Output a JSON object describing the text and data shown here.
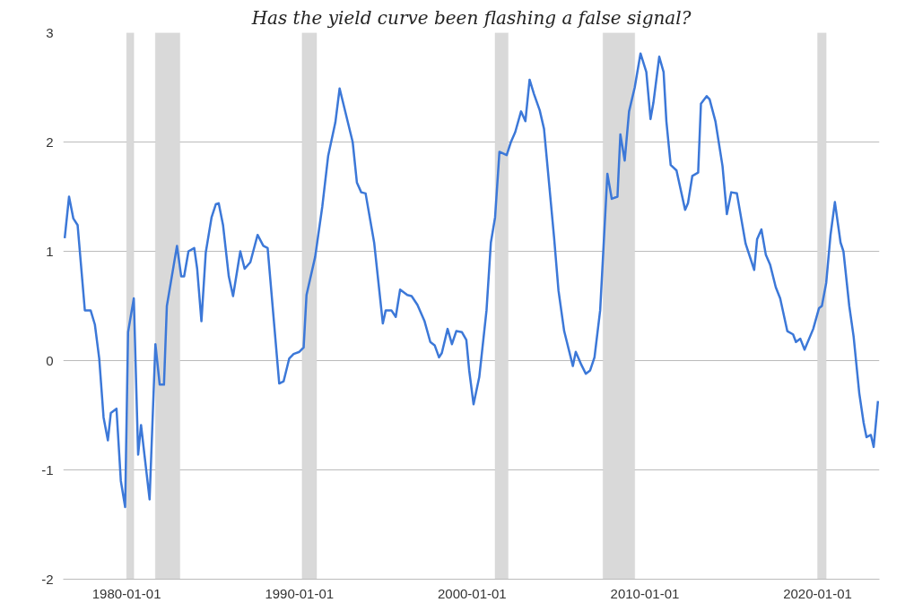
{
  "chart_data": {
    "type": "line",
    "title": "Has the yield curve been flashing a false signal?",
    "x": [
      "1976-06",
      "1976-09",
      "1976-12",
      "1977-03",
      "1977-08",
      "1977-12",
      "1978-03",
      "1978-06",
      "1978-09",
      "1978-12",
      "1979-02",
      "1979-06",
      "1979-09",
      "1979-12",
      "1980-02",
      "1980-06",
      "1980-09",
      "1980-11",
      "1981-05",
      "1981-09",
      "1981-12",
      "1982-03",
      "1982-05",
      "1982-12",
      "1983-03",
      "1983-05",
      "1983-08",
      "1983-12",
      "1984-02",
      "1984-05",
      "1984-08",
      "1984-12",
      "1985-03",
      "1985-05",
      "1985-08",
      "1985-12",
      "1986-03",
      "1986-08",
      "1986-11",
      "1987-03",
      "1987-08",
      "1987-12",
      "1988-03",
      "1988-11",
      "1989-02",
      "1989-06",
      "1989-09",
      "1990-01",
      "1990-04",
      "1990-06",
      "1990-12",
      "1991-05",
      "1991-09",
      "1992-02",
      "1992-05",
      "1993-02",
      "1993-05",
      "1993-08",
      "1993-11",
      "1994-05",
      "1994-11",
      "1995-01",
      "1995-05",
      "1995-08",
      "1995-11",
      "1996-04",
      "1996-07",
      "1996-11",
      "1997-04",
      "1997-08",
      "1997-11",
      "1998-02",
      "1998-04",
      "1998-08",
      "1998-11",
      "1999-02",
      "1999-06",
      "1999-09",
      "1999-11",
      "2000-02",
      "2000-06",
      "2000-11",
      "2001-02",
      "2001-05",
      "2001-08",
      "2002-01",
      "2002-04",
      "2002-07",
      "2002-11",
      "2003-02",
      "2003-05",
      "2003-08",
      "2003-12",
      "2004-03",
      "2004-10",
      "2005-01",
      "2005-05",
      "2005-11",
      "2006-01",
      "2006-05",
      "2006-08",
      "2006-11",
      "2007-02",
      "2007-06",
      "2007-11",
      "2008-02",
      "2008-06",
      "2008-08",
      "2008-11",
      "2009-02",
      "2009-06",
      "2009-10",
      "2010-02",
      "2010-05",
      "2010-07",
      "2010-11",
      "2011-02",
      "2011-04",
      "2011-07",
      "2011-11",
      "2012-05",
      "2012-07",
      "2012-10",
      "2013-02",
      "2013-04",
      "2013-08",
      "2013-10",
      "2014-02",
      "2014-07",
      "2014-10",
      "2015-01",
      "2015-05",
      "2015-11",
      "2016-05",
      "2016-07",
      "2016-10",
      "2017-01",
      "2017-04",
      "2017-08",
      "2017-11",
      "2018-04",
      "2018-08",
      "2018-10",
      "2019-01",
      "2019-04",
      "2019-10",
      "2020-02",
      "2020-04",
      "2020-07",
      "2020-10",
      "2021-01",
      "2021-05",
      "2021-07",
      "2021-11",
      "2022-02",
      "2022-06",
      "2022-09",
      "2022-11",
      "2023-02",
      "2023-04",
      "2023-07"
    ],
    "series": [
      {
        "color": "#3c78d8",
        "values": [
          1.12,
          1.5,
          1.3,
          1.24,
          0.46,
          0.46,
          0.33,
          0.02,
          -0.52,
          -0.73,
          -0.48,
          -0.44,
          -1.1,
          -1.34,
          0.26,
          0.57,
          -0.86,
          -0.59,
          -1.27,
          0.15,
          -0.22,
          -0.22,
          0.5,
          1.05,
          0.77,
          0.77,
          1.0,
          1.03,
          0.84,
          0.36,
          0.99,
          1.31,
          1.43,
          1.44,
          1.24,
          0.77,
          0.59,
          1.0,
          0.84,
          0.9,
          1.15,
          1.05,
          1.03,
          -0.21,
          -0.19,
          0.02,
          0.06,
          0.08,
          0.12,
          0.6,
          0.95,
          1.41,
          1.87,
          2.18,
          2.49,
          2.0,
          1.63,
          1.54,
          1.53,
          1.08,
          0.34,
          0.46,
          0.46,
          0.4,
          0.65,
          0.6,
          0.59,
          0.51,
          0.36,
          0.17,
          0.14,
          0.03,
          0.07,
          0.29,
          0.15,
          0.27,
          0.26,
          0.19,
          -0.09,
          -0.4,
          -0.15,
          0.46,
          1.08,
          1.31,
          1.91,
          1.88,
          2.0,
          2.09,
          2.28,
          2.19,
          2.57,
          2.44,
          2.29,
          2.12,
          1.12,
          0.64,
          0.27,
          -0.05,
          0.08,
          -0.04,
          -0.12,
          -0.09,
          0.03,
          0.46,
          1.71,
          1.48,
          1.5,
          2.07,
          1.83,
          2.28,
          2.5,
          2.81,
          2.64,
          2.21,
          2.36,
          2.78,
          2.64,
          2.19,
          1.79,
          1.74,
          1.38,
          1.44,
          1.69,
          1.72,
          2.35,
          2.42,
          2.39,
          2.19,
          1.78,
          1.34,
          1.54,
          1.53,
          1.07,
          0.83,
          1.11,
          1.2,
          0.97,
          0.88,
          0.67,
          0.57,
          0.27,
          0.24,
          0.17,
          0.2,
          0.1,
          0.29,
          0.48,
          0.5,
          0.71,
          1.15,
          1.45,
          1.08,
          1.0,
          0.5,
          0.22,
          -0.3,
          -0.57,
          -0.7,
          -0.68,
          -0.79,
          -0.37
        ]
      }
    ],
    "xlim": [
      "1976-05",
      "2023-08"
    ],
    "ylim": [
      -2,
      3
    ],
    "xticks": [
      "1980-01-01",
      "1990-01-01",
      "2000-01-01",
      "2010-01-01",
      "2020-01-01"
    ],
    "yticks": [
      -2,
      -1,
      0,
      1,
      2,
      3
    ],
    "bands": [
      {
        "axis": "x",
        "from": "1980-01",
        "to": "1980-06",
        "color": "#d9d9d9"
      },
      {
        "axis": "x",
        "from": "1981-09",
        "to": "1983-02",
        "color": "#d9d9d9"
      },
      {
        "axis": "x",
        "from": "1990-03",
        "to": "1991-01",
        "color": "#d9d9d9"
      },
      {
        "axis": "x",
        "from": "2001-05",
        "to": "2002-02",
        "color": "#d9d9d9"
      },
      {
        "axis": "x",
        "from": "2007-08",
        "to": "2009-06",
        "color": "#d9d9d9"
      },
      {
        "axis": "x",
        "from": "2020-01",
        "to": "2020-07",
        "color": "#d9d9d9"
      }
    ],
    "grid": "y",
    "marker": "none",
    "line_style": "solid"
  }
}
